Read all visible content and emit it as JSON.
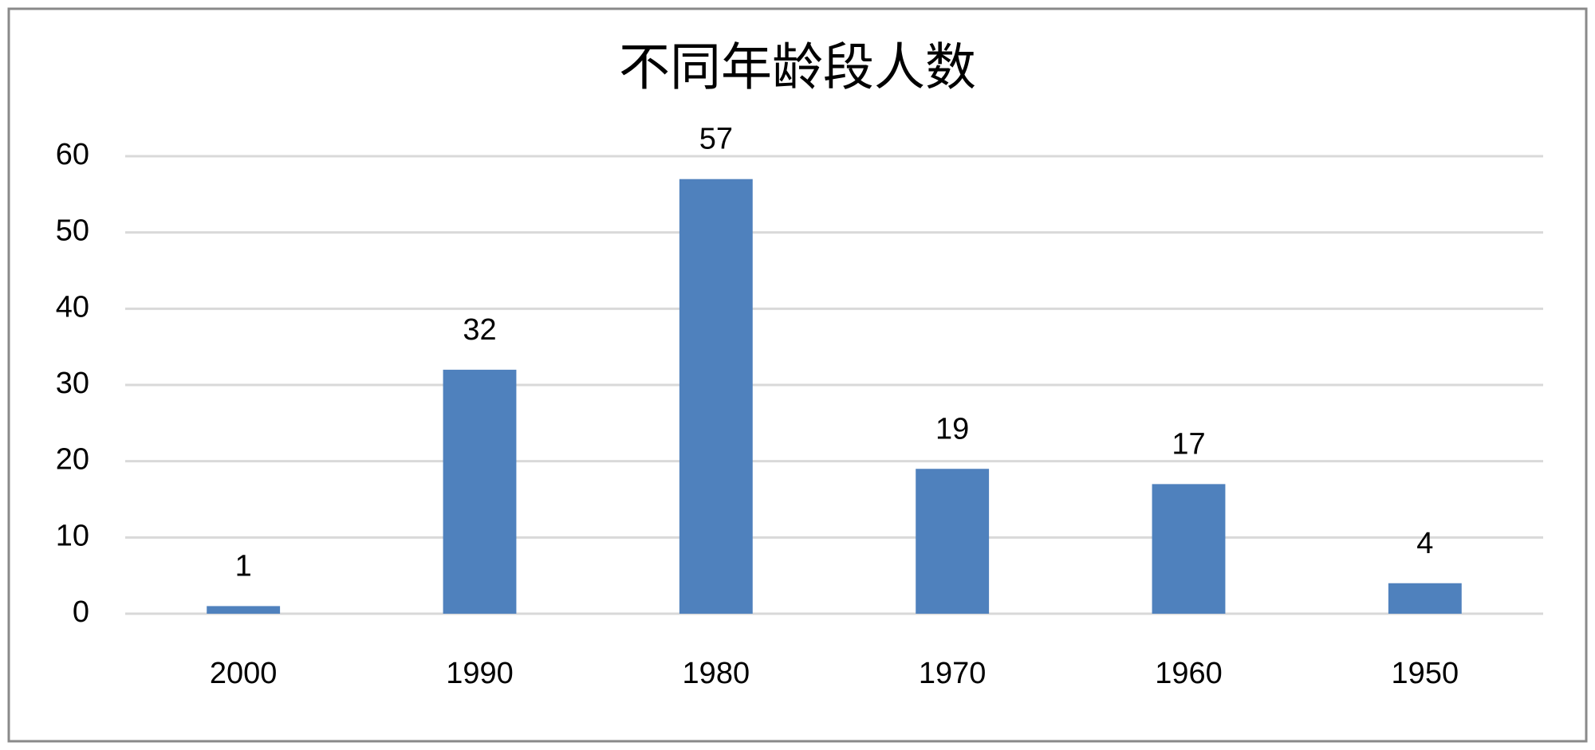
{
  "chart_data": {
    "type": "bar",
    "title": "不同年龄段人数",
    "categories": [
      "2000",
      "1990",
      "1980",
      "1970",
      "1960",
      "1950"
    ],
    "values": [
      1,
      32,
      57,
      19,
      17,
      4
    ],
    "color": "#4f81bd",
    "ylim": [
      0,
      60
    ],
    "yticks": [
      0,
      10,
      20,
      30,
      40,
      50,
      60
    ],
    "grid": true,
    "data_labels": true
  }
}
